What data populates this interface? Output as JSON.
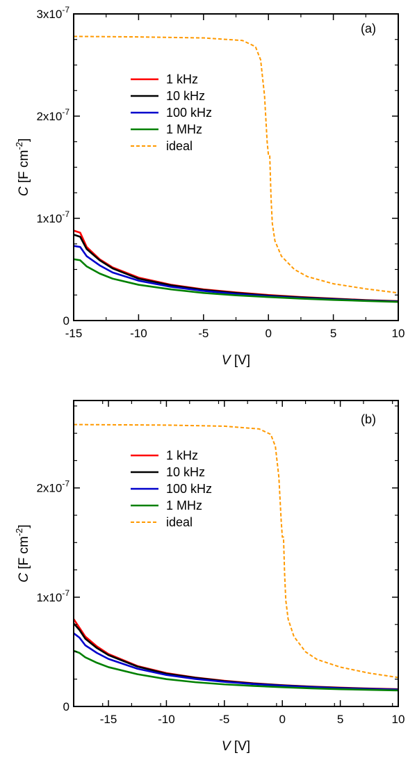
{
  "chart_data": [
    {
      "type": "line",
      "panel_label": "(a)",
      "xlabel_var": "V",
      "xlabel_unit": " [V]",
      "ylabel": "C [F cm-2]",
      "ylabel_main": "C",
      "ylabel_unit_pre": " [F cm",
      "ylabel_exp": "-2",
      "ylabel_close": "]",
      "xlim": [
        -15,
        10
      ],
      "ylim": [
        0,
        3e-07
      ],
      "xticks": [
        -15,
        -10,
        -5,
        0,
        5,
        10
      ],
      "xtick_labels": [
        "-15",
        "-10",
        "-5",
        "0",
        "5",
        "10"
      ],
      "yticks": [
        0,
        1e-07,
        2e-07,
        3e-07
      ],
      "ytick_labels": [
        {
          "base": "0",
          "exp": ""
        },
        {
          "base": "1x10",
          "exp": "-7"
        },
        {
          "base": "2x10",
          "exp": "-7"
        },
        {
          "base": "3x10",
          "exp": "-7"
        }
      ],
      "legend_position": "upper-left",
      "series": [
        {
          "name": "1 kHz",
          "color": "#ff0000",
          "dash": false,
          "x": [
            -15,
            -14.5,
            -14,
            -13,
            -12,
            -10,
            -7.5,
            -5,
            -2.5,
            0,
            2.5,
            5,
            7.5,
            10
          ],
          "y": [
            8.8e-08,
            8.6e-08,
            7.2e-08,
            6e-08,
            5.2e-08,
            4.2e-08,
            3.5e-08,
            3.05e-08,
            2.75e-08,
            2.5e-08,
            2.3e-08,
            2.15e-08,
            2e-08,
            1.9e-08
          ]
        },
        {
          "name": "10 kHz",
          "color": "#000000",
          "dash": false,
          "x": [
            -15,
            -14.5,
            -14,
            -13,
            -12,
            -10,
            -7.5,
            -5,
            -2.5,
            0,
            2.5,
            5,
            7.5,
            10
          ],
          "y": [
            8.4e-08,
            8.2e-08,
            7e-08,
            5.9e-08,
            5.1e-08,
            4.1e-08,
            3.45e-08,
            3e-08,
            2.7e-08,
            2.45e-08,
            2.27e-08,
            2.12e-08,
            1.98e-08,
            1.88e-08
          ]
        },
        {
          "name": "100 kHz",
          "color": "#0000cc",
          "dash": false,
          "x": [
            -15,
            -14.5,
            -14,
            -13,
            -12,
            -10,
            -7.5,
            -5,
            -2.5,
            0,
            2.5,
            5,
            7.5,
            10
          ],
          "y": [
            7.3e-08,
            7.2e-08,
            6.3e-08,
            5.4e-08,
            4.7e-08,
            3.9e-08,
            3.3e-08,
            2.9e-08,
            2.6e-08,
            2.38e-08,
            2.2e-08,
            2.07e-08,
            1.95e-08,
            1.85e-08
          ]
        },
        {
          "name": "1 MHz",
          "color": "#008000",
          "dash": false,
          "x": [
            -15,
            -14.5,
            -14,
            -13,
            -12,
            -10,
            -7.5,
            -5,
            -2.5,
            0,
            2.5,
            5,
            7.5,
            10
          ],
          "y": [
            6e-08,
            5.9e-08,
            5.3e-08,
            4.6e-08,
            4.1e-08,
            3.5e-08,
            3.05e-08,
            2.7e-08,
            2.47e-08,
            2.3e-08,
            2.15e-08,
            2.02e-08,
            1.92e-08,
            1.82e-08
          ]
        },
        {
          "name": "ideal",
          "color": "#ff9900",
          "dash": true,
          "x": [
            -15,
            -10,
            -5,
            -2,
            -1,
            -0.6,
            -0.3,
            -0.1,
            0,
            0.1,
            0.2,
            0.3,
            0.5,
            1,
            2,
            3,
            5,
            7.5,
            10
          ],
          "y": [
            2.78e-07,
            2.775e-07,
            2.765e-07,
            2.74e-07,
            2.68e-07,
            2.55e-07,
            2.2e-07,
            1.75e-07,
            1.62e-07,
            1.62e-07,
            1.2e-07,
            9.5e-08,
            7.8e-08,
            6.3e-08,
            5e-08,
            4.3e-08,
            3.6e-08,
            3.1e-08,
            2.7e-08
          ]
        }
      ]
    },
    {
      "type": "line",
      "panel_label": "(b)",
      "xlabel_var": "V",
      "xlabel_unit": " [V]",
      "ylabel": "C [F cm-2]",
      "ylabel_main": "C",
      "ylabel_unit_pre": " [F cm",
      "ylabel_exp": "-2",
      "ylabel_close": "]",
      "xlim": [
        -18,
        10
      ],
      "ylim": [
        0,
        2.8e-07
      ],
      "xticks": [
        -15,
        -10,
        -5,
        0,
        5,
        10
      ],
      "xtick_labels": [
        "-15",
        "-10",
        "-5",
        "0",
        "5",
        "10"
      ],
      "yticks": [
        0,
        1e-07,
        2e-07
      ],
      "ytick_labels": [
        {
          "base": "0",
          "exp": ""
        },
        {
          "base": "1x10",
          "exp": "-7"
        },
        {
          "base": "2x10",
          "exp": "-7"
        }
      ],
      "legend_position": "upper-left",
      "series": [
        {
          "name": "1 kHz",
          "color": "#ff0000",
          "dash": false,
          "x": [
            -18,
            -17.5,
            -17,
            -16,
            -15,
            -12.5,
            -10,
            -7.5,
            -5,
            -2.5,
            0,
            2.5,
            5,
            7.5,
            10
          ],
          "y": [
            8e-08,
            7.2e-08,
            6.4e-08,
            5.5e-08,
            4.8e-08,
            3.7e-08,
            3.05e-08,
            2.65e-08,
            2.35e-08,
            2.12e-08,
            1.95e-08,
            1.82e-08,
            1.72e-08,
            1.64e-08,
            1.58e-08
          ]
        },
        {
          "name": "10 kHz",
          "color": "#000000",
          "dash": false,
          "x": [
            -18,
            -17.5,
            -17,
            -16,
            -15,
            -12.5,
            -10,
            -7.5,
            -5,
            -2.5,
            0,
            2.5,
            5,
            7.5,
            10
          ],
          "y": [
            7.6e-08,
            7e-08,
            6.2e-08,
            5.35e-08,
            4.7e-08,
            3.65e-08,
            3e-08,
            2.62e-08,
            2.32e-08,
            2.1e-08,
            1.93e-08,
            1.8e-08,
            1.7e-08,
            1.62e-08,
            1.56e-08
          ]
        },
        {
          "name": "100 kHz",
          "color": "#0000cc",
          "dash": false,
          "x": [
            -18,
            -17.5,
            -17,
            -16,
            -15,
            -12.5,
            -10,
            -7.5,
            -5,
            -2.5,
            0,
            2.5,
            5,
            7.5,
            10
          ],
          "y": [
            6.7e-08,
            6.3e-08,
            5.6e-08,
            4.9e-08,
            4.35e-08,
            3.45e-08,
            2.88e-08,
            2.52e-08,
            2.25e-08,
            2.05e-08,
            1.89e-08,
            1.77e-08,
            1.67e-08,
            1.6e-08,
            1.54e-08
          ]
        },
        {
          "name": "1 MHz",
          "color": "#008000",
          "dash": false,
          "x": [
            -18,
            -17.5,
            -17,
            -16,
            -15,
            -12.5,
            -10,
            -7.5,
            -5,
            -2.5,
            0,
            2.5,
            5,
            7.5,
            10
          ],
          "y": [
            5.1e-08,
            4.9e-08,
            4.5e-08,
            4e-08,
            3.6e-08,
            2.95e-08,
            2.5e-08,
            2.22e-08,
            2.02e-08,
            1.88e-08,
            1.76e-08,
            1.66e-08,
            1.58e-08,
            1.52e-08,
            1.47e-08
          ]
        },
        {
          "name": "ideal",
          "color": "#ff9900",
          "dash": true,
          "x": [
            -18,
            -15,
            -10,
            -5,
            -2,
            -1,
            -0.6,
            -0.3,
            -0.1,
            0,
            0.1,
            0.2,
            0.3,
            0.5,
            1,
            2,
            3,
            5,
            7.5,
            10
          ],
          "y": [
            2.58e-07,
            2.578e-07,
            2.575e-07,
            2.565e-07,
            2.54e-07,
            2.49e-07,
            2.38e-07,
            2.1e-07,
            1.7e-07,
            1.55e-07,
            1.55e-07,
            1.2e-07,
            9.7e-08,
            8e-08,
            6.4e-08,
            5e-08,
            4.3e-08,
            3.6e-08,
            3.05e-08,
            2.65e-08
          ]
        }
      ]
    }
  ]
}
